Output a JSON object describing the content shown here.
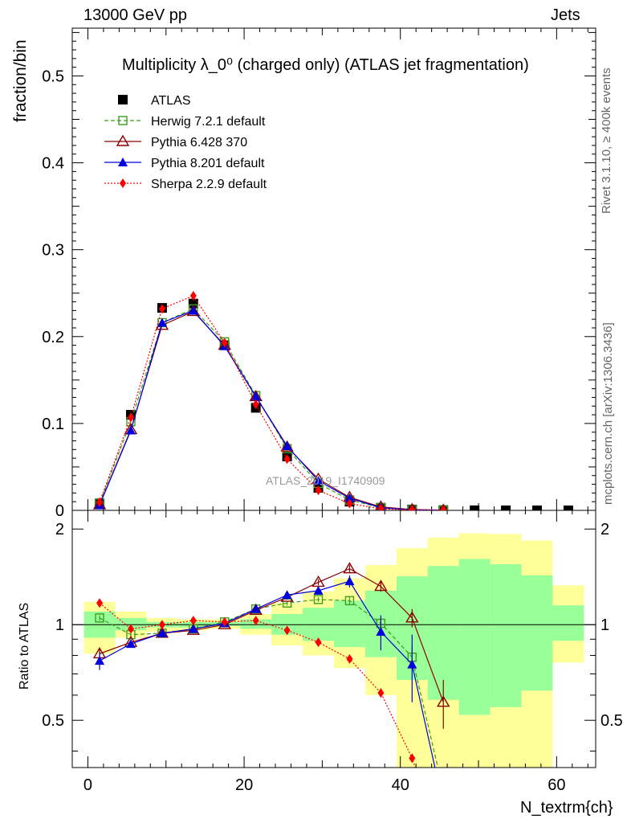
{
  "header": {
    "left": "13000 GeV pp",
    "right": "Jets"
  },
  "side_notes": {
    "top": "Rivet 3.1.10, ≥ 400k events",
    "bottom": "mcplots.cern.ch [arXiv:1306.3436]"
  },
  "watermark": "ATLAS_2019_I1740909",
  "chart_data": [
    {
      "type": "scatter",
      "title": "Multiplicity λ_0⁰ (charged only) (ATLAS jet fragmentation)",
      "ylabel": "fraction/bin",
      "xlim": [
        -2,
        65
      ],
      "ylim": [
        0,
        0.555
      ],
      "yticks": [
        0,
        0.1,
        0.2,
        0.3,
        0.4,
        0.5
      ],
      "x": [
        1.5,
        5.5,
        9.5,
        13.5,
        17.5,
        21.5,
        25.5,
        29.5,
        33.5,
        37.5,
        41.5,
        45.5,
        49.5,
        53.5,
        57.5,
        61.5
      ],
      "legend": "top-left",
      "series": [
        {
          "name": "ATLAS",
          "color": "#000000",
          "marker": "square-filled",
          "line": "none",
          "values": [
            0.008,
            0.11,
            0.233,
            0.238,
            0.19,
            0.118,
            0.062,
            0.026,
            0.01,
            0.003,
            0.001,
            0.0003,
            0.0001,
            3e-05,
            1e-05,
            3e-06
          ]
        },
        {
          "name": "Herwig 7.2.1 default",
          "color": "#3a9e1d",
          "marker": "square-open",
          "line": "dashed",
          "values": [
            0.0085,
            0.102,
            0.216,
            0.232,
            0.194,
            0.132,
            0.071,
            0.031,
            0.012,
            0.003,
            0.0008,
            0.0002
          ]
        },
        {
          "name": "Pythia 6.428 370",
          "color": "#8b0000",
          "marker": "triangle-open",
          "line": "solid",
          "values": [
            0.0065,
            0.093,
            0.213,
            0.229,
            0.19,
            0.131,
            0.073,
            0.036,
            0.015,
            0.004,
            0.001,
            0.0002
          ]
        },
        {
          "name": "Pythia 8.201 default",
          "color": "#0000dd",
          "marker": "triangle-filled",
          "line": "solid",
          "values": [
            0.006,
            0.092,
            0.216,
            0.23,
            0.189,
            0.131,
            0.074,
            0.034,
            0.014,
            0.003,
            0.0006,
            8e-05
          ]
        },
        {
          "name": "Sherpa 2.2.9 default",
          "color": "#ff0000",
          "marker": "diamond-filled",
          "line": "dotted",
          "values": [
            0.0095,
            0.107,
            0.232,
            0.247,
            0.193,
            0.122,
            0.059,
            0.023,
            0.0078,
            0.0018,
            0.0003,
            5e-05
          ]
        }
      ]
    },
    {
      "type": "line",
      "ylabel": "Ratio to ATLAS",
      "xlabel": "N_textrm{ch}",
      "xlim": [
        -2,
        65
      ],
      "ylim": [
        0.355,
        2.29
      ],
      "yticks": [
        0.5,
        1,
        2
      ],
      "xticks": [
        0,
        20,
        40,
        60
      ],
      "reference_line": 1,
      "bands": {
        "x_edges": [
          -0.5,
          3.5,
          7.5,
          11.5,
          15.5,
          19.5,
          23.5,
          27.5,
          31.5,
          35.5,
          39.5,
          43.5,
          47.5,
          51.5,
          55.5,
          59.5,
          63.5
        ],
        "yellow_low": [
          0.81,
          0.91,
          0.95,
          0.96,
          0.97,
          0.93,
          0.86,
          0.8,
          0.73,
          0.6,
          0.33,
          0.3,
          0.3,
          0.3,
          0.3,
          0.76
        ],
        "yellow_high": [
          1.18,
          1.1,
          1.05,
          1.04,
          1.04,
          1.08,
          1.17,
          1.27,
          1.4,
          1.54,
          1.74,
          1.88,
          1.94,
          1.93,
          1.84,
          1.33
        ],
        "green_low": [
          0.91,
          0.96,
          0.98,
          0.98,
          0.99,
          0.97,
          0.93,
          0.89,
          0.85,
          0.79,
          0.67,
          0.58,
          0.52,
          0.55,
          0.62,
          0.89
        ],
        "green_high": [
          1.1,
          1.05,
          1.02,
          1.02,
          1.02,
          1.04,
          1.08,
          1.13,
          1.19,
          1.28,
          1.42,
          1.53,
          1.61,
          1.55,
          1.43,
          1.15
        ],
        "green_color": "#99ff99",
        "yellow_color": "#ffff99"
      },
      "series": [
        {
          "name": "Herwig 7.2.1 default",
          "color": "#3a9e1d",
          "marker": "square-open",
          "line": "dashed",
          "values": [
            1.05,
            0.93,
            0.94,
            0.97,
            1.02,
            1.12,
            1.17,
            1.2,
            1.19,
            1.01,
            0.79,
            0.3
          ],
          "errors": [
            0.02,
            0.01,
            0.01,
            0.01,
            0.01,
            0.01,
            0.02,
            0.02,
            0.03,
            0.04,
            0.07,
            0.0
          ]
        },
        {
          "name": "Pythia 6.428 370",
          "color": "#8b0000",
          "marker": "triangle-open",
          "line": "solid",
          "values": [
            0.81,
            0.88,
            0.94,
            0.96,
            1.0,
            1.11,
            1.22,
            1.36,
            1.5,
            1.32,
            1.05,
            0.57
          ],
          "errors": [
            0.03,
            0.01,
            0.01,
            0.01,
            0.01,
            0.01,
            0.02,
            0.03,
            0.04,
            0.05,
            0.07,
            0.1
          ]
        },
        {
          "name": "Pythia 8.201 default",
          "color": "#0000dd",
          "marker": "triangle-filled",
          "line": "solid",
          "values": [
            0.77,
            0.87,
            0.94,
            0.97,
            1.01,
            1.12,
            1.24,
            1.28,
            1.37,
            0.95,
            0.75,
            0.27
          ],
          "errors": [
            0.05,
            0.02,
            0.01,
            0.01,
            0.01,
            0.01,
            0.02,
            0.03,
            0.06,
            0.12,
            0.18,
            0.0
          ]
        },
        {
          "name": "Sherpa 2.2.9 default",
          "color": "#ff0000",
          "marker": "diamond-filled",
          "line": "dotted",
          "values": [
            1.17,
            0.97,
            1.0,
            1.03,
            1.02,
            1.03,
            0.96,
            0.88,
            0.78,
            0.61,
            0.38,
            0.2
          ],
          "errors": [
            0.02,
            0.01,
            0.01,
            0.01,
            0.01,
            0.01,
            0.01,
            0.01,
            0.01,
            0.02,
            0.0,
            0.0
          ]
        }
      ]
    }
  ]
}
